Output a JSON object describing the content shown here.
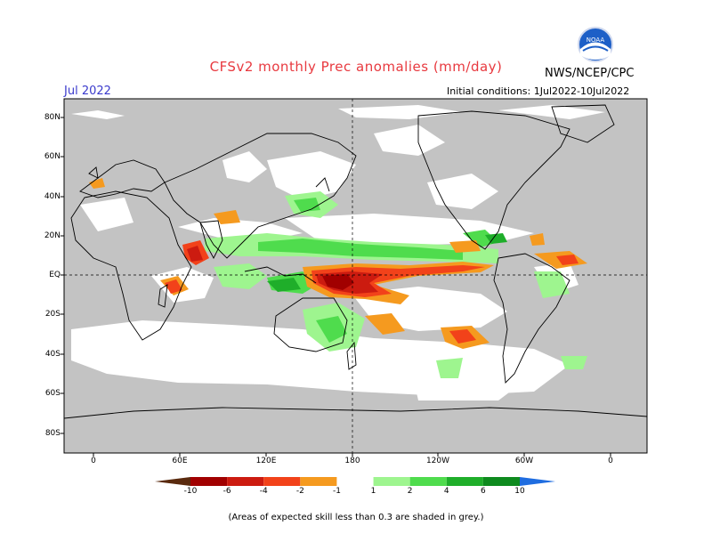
{
  "title": "CFSv2 monthly Prec anomalies (mm/day)",
  "agency": "NWS/NCEP/CPC",
  "logo_text": "NOAA",
  "month": "Jul 2022",
  "initial_conditions": "Initial conditions: 1Jul2022-10Jul2022",
  "lat_labels": [
    "80N",
    "60N",
    "40N",
    "20N",
    "EQ",
    "20S",
    "40S",
    "60S",
    "80S"
  ],
  "lon_labels": [
    "0",
    "60E",
    "120E",
    "180",
    "120W",
    "60W",
    "0"
  ],
  "colorbar": {
    "labels": [
      "-10",
      "-6",
      "-4",
      "-2",
      "-1",
      "1",
      "2",
      "4",
      "6",
      "10"
    ],
    "colors": [
      "#5a2a0e",
      "#a10000",
      "#cc1b10",
      "#f2421a",
      "#f59a1f",
      "#ffffff",
      "#9ef58f",
      "#4fdc4d",
      "#1fae2a",
      "#0e8a1e",
      "#1f6de0"
    ]
  },
  "footnote": "(Areas of expected skill less than 0.3 are shaded in grey.)",
  "colors": {
    "grey_mask": "#c3c3c3",
    "ocean": "#ffffff",
    "title": "#e8393f",
    "month": "#3a3acc"
  }
}
